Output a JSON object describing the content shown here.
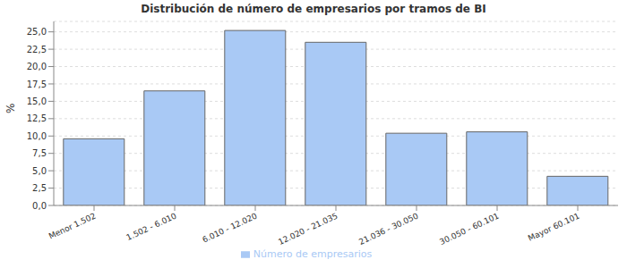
{
  "chart_data": {
    "type": "bar",
    "title": "Distribución de número de empresarios por tramos de BI",
    "y_label": "%",
    "categories": [
      "Menor 1.502",
      "1.502 - 6.010",
      "6.010 - 12.020",
      "12.020 - 21.035",
      "21.036 - 30.050",
      "30.050 - 60.101",
      "Mayor 60.101"
    ],
    "series": [
      {
        "name": "Número de empresarios",
        "color": "#a9c9f5",
        "values": [
          9.6,
          16.5,
          25.2,
          23.5,
          10.4,
          10.6,
          4.2
        ]
      }
    ],
    "ylim": [
      0,
      26.5
    ],
    "yticks": [
      {
        "value": 0,
        "label": "0,0"
      },
      {
        "value": 2.5,
        "label": "2,5"
      },
      {
        "value": 5,
        "label": "5,0"
      },
      {
        "value": 7.5,
        "label": "7,5"
      },
      {
        "value": 10,
        "label": "10,0"
      },
      {
        "value": 12.5,
        "label": "12,5"
      },
      {
        "value": 15,
        "label": "15,0"
      },
      {
        "value": 17.5,
        "label": "17,5"
      },
      {
        "value": 20,
        "label": "20,0"
      },
      {
        "value": 22.5,
        "label": "22,5"
      },
      {
        "value": 25,
        "label": "25,0"
      }
    ],
    "grid": true,
    "legend": "bottom"
  }
}
